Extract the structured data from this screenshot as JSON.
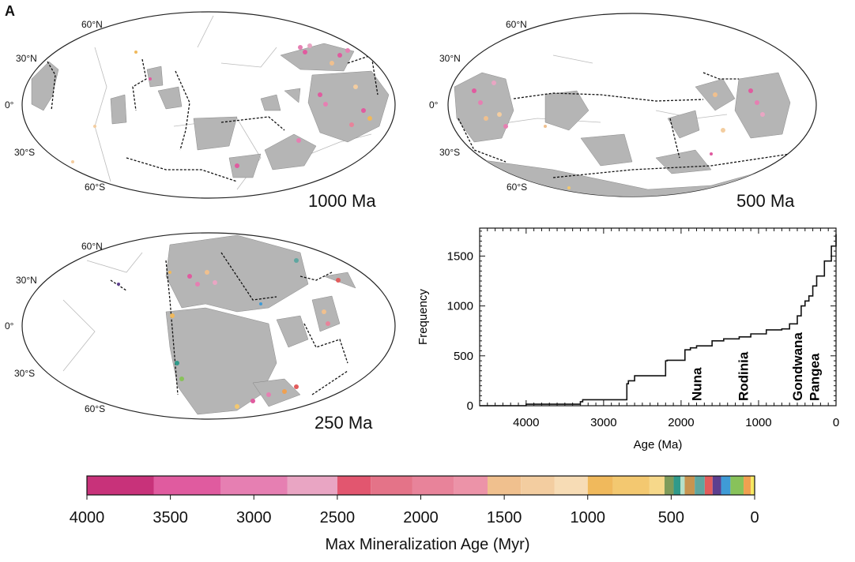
{
  "panel_label": "A",
  "maps": [
    {
      "id": "map-1000",
      "age_label": "1000 Ma"
    },
    {
      "id": "map-500",
      "age_label": "500 Ma"
    },
    {
      "id": "map-250",
      "age_label": "250 Ma"
    }
  ],
  "latitude_labels": [
    "60°N",
    "30°N",
    "0°",
    "30°S",
    "60°S"
  ],
  "colorbar": {
    "title": "Max Mineralization Age (Myr)",
    "tick_labels": [
      "4000",
      "3500",
      "3000",
      "2500",
      "2000",
      "1500",
      "1000",
      "500",
      "0"
    ],
    "range": [
      4000,
      0
    ],
    "segments": [
      {
        "from": 4000,
        "to": 3600,
        "color": "#c8327a"
      },
      {
        "from": 3600,
        "to": 3200,
        "color": "#e05b9f"
      },
      {
        "from": 3200,
        "to": 2800,
        "color": "#e67fb2"
      },
      {
        "from": 2800,
        "to": 2500,
        "color": "#e9a5c3"
      },
      {
        "from": 2500,
        "to": 2300,
        "color": "#e2566f"
      },
      {
        "from": 2300,
        "to": 2050,
        "color": "#e47388"
      },
      {
        "from": 2050,
        "to": 1800,
        "color": "#e8839a"
      },
      {
        "from": 1800,
        "to": 1600,
        "color": "#ec93a8"
      },
      {
        "from": 1600,
        "to": 1400,
        "color": "#f0c08e"
      },
      {
        "from": 1400,
        "to": 1200,
        "color": "#f3cda0"
      },
      {
        "from": 1200,
        "to": 1000,
        "color": "#f7dcb5"
      },
      {
        "from": 1000,
        "to": 850,
        "color": "#f0b95c"
      },
      {
        "from": 850,
        "to": 630,
        "color": "#f3c870"
      },
      {
        "from": 630,
        "to": 540,
        "color": "#f6d88a"
      },
      {
        "from": 540,
        "to": 485,
        "color": "#7e9b5a"
      },
      {
        "from": 485,
        "to": 444,
        "color": "#2f9a8a"
      },
      {
        "from": 444,
        "to": 419,
        "color": "#b6e0c8"
      },
      {
        "from": 419,
        "to": 359,
        "color": "#c89450"
      },
      {
        "from": 359,
        "to": 299,
        "color": "#5fa6a0"
      },
      {
        "from": 299,
        "to": 252,
        "color": "#e25c5c"
      },
      {
        "from": 252,
        "to": 201,
        "color": "#5d3f8f"
      },
      {
        "from": 201,
        "to": 145,
        "color": "#3f9bd6"
      },
      {
        "from": 145,
        "to": 66,
        "color": "#88c25a"
      },
      {
        "from": 66,
        "to": 23,
        "color": "#f0a050"
      },
      {
        "from": 23,
        "to": 0,
        "color": "#f6e860"
      }
    ]
  },
  "chart_data": {
    "type": "line",
    "xlabel": "Age (Ma)",
    "ylabel": "Frequency",
    "xlim": [
      4600,
      0
    ],
    "ylim": [
      0,
      1780
    ],
    "x_ticks": [
      4000,
      3000,
      2000,
      1000,
      0
    ],
    "x_tick_labels": [
      "4000",
      "3000",
      "2000",
      "1000",
      "0"
    ],
    "y_ticks": [
      0,
      500,
      1000,
      1500
    ],
    "y_tick_labels": [
      "0",
      "500",
      "1000",
      "1500"
    ],
    "series": [
      {
        "x": [
          4600,
          4000,
          3300,
          3270,
          2700,
          2680,
          2600,
          2450,
          2200,
          2180,
          1950,
          1880,
          1800,
          1600,
          1450,
          1250,
          1100,
          900,
          700,
          600,
          500,
          450,
          400,
          350,
          300,
          250,
          150,
          60,
          0
        ],
        "y": [
          0,
          15,
          40,
          60,
          220,
          250,
          300,
          300,
          450,
          455,
          560,
          580,
          600,
          650,
          670,
          690,
          720,
          760,
          770,
          820,
          900,
          1000,
          1050,
          1100,
          1200,
          1300,
          1450,
          1600,
          1720
        ]
      }
    ],
    "annotations": [
      {
        "text": "Nuna",
        "x": 1800
      },
      {
        "text": "Rodinia",
        "x": 1200
      },
      {
        "text": "Gondwana",
        "x": 500
      },
      {
        "text": "Pangea",
        "x": 280
      }
    ],
    "grid": false
  }
}
